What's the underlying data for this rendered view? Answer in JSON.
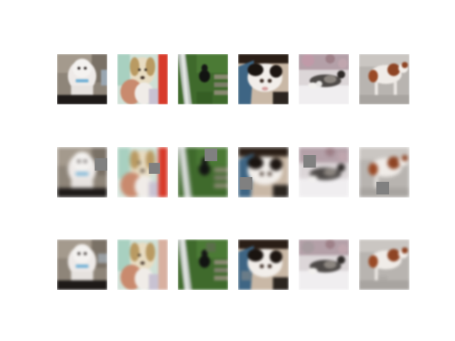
{
  "figure": {
    "rows": [
      {
        "role": "original",
        "tiles": [
          "poodle",
          "retriever",
          "dark-dog-on-grass",
          "cat-on-blue",
          "tabby-cat-lying",
          "spaniel-on-rug"
        ]
      },
      {
        "role": "masked",
        "tiles": [
          "poodle",
          "retriever",
          "dark-dog-on-grass",
          "cat-on-blue",
          "tabby-cat-lying",
          "spaniel-on-rug"
        ]
      },
      {
        "role": "reconstructed",
        "tiles": [
          "poodle",
          "retriever",
          "dark-dog-on-grass",
          "cat-on-blue",
          "tabby-cat-lying",
          "spaniel-on-rug"
        ]
      }
    ],
    "mask_color": "#808080",
    "background": "#ffffff"
  }
}
